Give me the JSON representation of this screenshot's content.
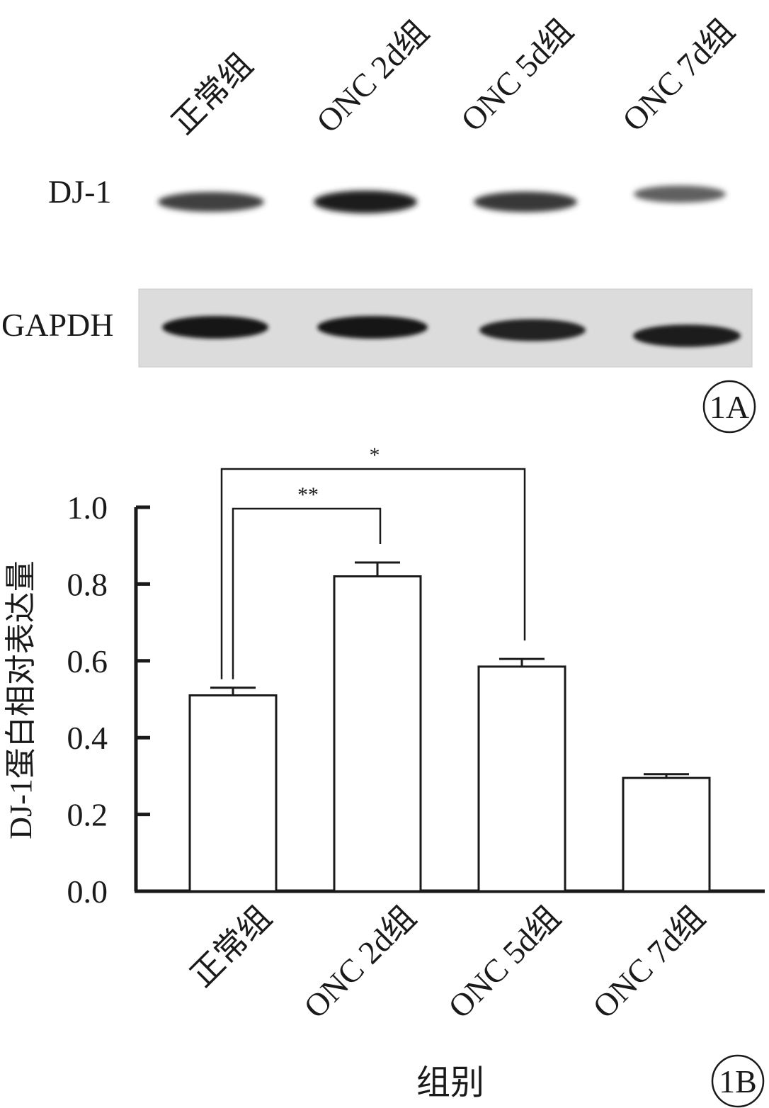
{
  "panel_a": {
    "lane_labels": [
      "正常组",
      "ONC 2d组",
      "ONC 5d组",
      "ONC 7d组"
    ],
    "row_labels": [
      "DJ-1",
      "GAPDH"
    ],
    "panel_label": "1A",
    "band_intensity": {
      "DJ-1": [
        0.72,
        1.0,
        0.78,
        0.45
      ],
      "GAPDH": [
        1.0,
        1.0,
        0.9,
        0.95
      ]
    }
  },
  "panel_b": {
    "panel_label": "1B"
  },
  "chart_data": {
    "type": "bar",
    "categories": [
      "正常组",
      "ONC 2d组",
      "ONC 5d组",
      "ONC 7d组"
    ],
    "values": [
      0.51,
      0.82,
      0.585,
      0.295
    ],
    "errors": [
      0.02,
      0.036,
      0.02,
      0.01
    ],
    "ylabel": "DJ-1蛋白相对表达量",
    "xlabel": "组别",
    "ylim": [
      0,
      1.0
    ],
    "yticks": [
      "0.0",
      "0.2",
      "0.4",
      "0.6",
      "0.8",
      "1.0"
    ],
    "bar_fill": "#ffffff",
    "bar_stroke": "#1a1a1a",
    "significance": [
      {
        "from": "正常组",
        "to": "ONC 2d组",
        "label": "**"
      },
      {
        "from": "正常组",
        "to": "ONC 5d组",
        "label": "*"
      }
    ]
  }
}
